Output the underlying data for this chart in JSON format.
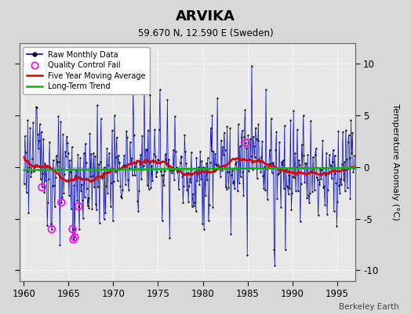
{
  "title": "ARVIKA",
  "subtitle": "59.670 N, 12.590 E (Sweden)",
  "ylabel": "Temperature Anomaly (°C)",
  "xlabel_credit": "Berkeley Earth",
  "xlim": [
    1959.5,
    1997.0
  ],
  "ylim": [
    -11,
    12
  ],
  "yticks": [
    -10,
    -5,
    0,
    5,
    10
  ],
  "xticks": [
    1960,
    1965,
    1970,
    1975,
    1980,
    1985,
    1990,
    1995
  ],
  "bg_color": "#d8d8d8",
  "plot_bg_color": "#e8e8e8",
  "line_color": "#0000bb",
  "stem_color": "#8899dd",
  "marker_color": "#111111",
  "ma_color": "#dd0000",
  "trend_color": "#00bb00",
  "qc_color": "#ff00ff",
  "seed": 123
}
